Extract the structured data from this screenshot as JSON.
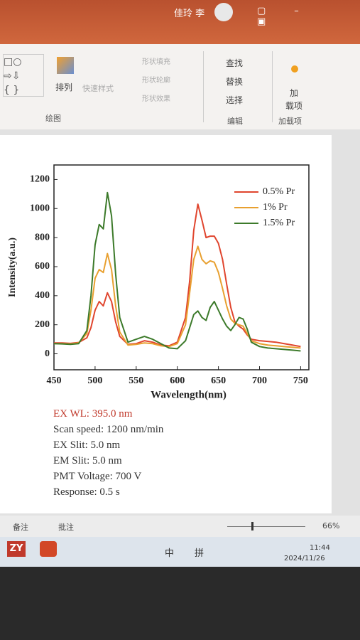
{
  "window": {
    "user": "佳玲 李"
  },
  "ribbon": {
    "arrange": "排列",
    "quick_styles": "快速样式",
    "shape_fill": "形状填充",
    "shape_outline": "形状轮廓",
    "shape_effects": "形状效果",
    "drawing_group": "绘图",
    "find": "查找",
    "replace": "替换",
    "select": "选择",
    "editing_group": "编辑",
    "addin_button": [
      "加",
      "载项"
    ],
    "addins_group": "加载项"
  },
  "chart_data": {
    "type": "line",
    "xlabel": "Wavelength(nm)",
    "ylabel": "Intensity(a.u.)",
    "x": [
      450,
      460,
      470,
      480,
      490,
      495,
      500,
      505,
      510,
      515,
      520,
      525,
      530,
      540,
      550,
      560,
      570,
      580,
      590,
      600,
      610,
      615,
      620,
      625,
      630,
      635,
      640,
      645,
      650,
      655,
      660,
      665,
      670,
      675,
      680,
      685,
      690,
      700,
      710,
      720,
      730,
      740,
      750
    ],
    "series": [
      {
        "name": "0.5% Pr",
        "color": "#e0452e",
        "values": [
          75,
          75,
          72,
          78,
          110,
          180,
          300,
          360,
          330,
          420,
          360,
          220,
          120,
          65,
          70,
          90,
          80,
          60,
          55,
          80,
          250,
          500,
          850,
          1030,
          920,
          800,
          810,
          810,
          760,
          650,
          480,
          320,
          220,
          190,
          170,
          130,
          100,
          90,
          85,
          80,
          70,
          60,
          50
        ]
      },
      {
        "name": "1% Pr",
        "color": "#e8a030",
        "values": [
          70,
          70,
          68,
          75,
          140,
          300,
          520,
          580,
          560,
          690,
          580,
          330,
          150,
          60,
          65,
          75,
          70,
          55,
          50,
          70,
          200,
          420,
          650,
          740,
          650,
          620,
          640,
          630,
          560,
          450,
          330,
          240,
          210,
          200,
          190,
          140,
          90,
          70,
          60,
          55,
          50,
          45,
          40
        ]
      },
      {
        "name": "1.5% Pr",
        "color": "#3c7a2a",
        "values": [
          70,
          68,
          65,
          70,
          160,
          400,
          750,
          890,
          860,
          1110,
          950,
          550,
          250,
          80,
          100,
          120,
          100,
          70,
          40,
          35,
          90,
          180,
          270,
          295,
          250,
          230,
          320,
          360,
          300,
          240,
          190,
          160,
          200,
          250,
          240,
          170,
          80,
          50,
          40,
          35,
          30,
          25,
          20
        ]
      }
    ],
    "xlim": [
      450,
      760
    ],
    "ylim": [
      -110,
      1300
    ],
    "xticks": [
      450,
      500,
      550,
      600,
      650,
      700,
      750
    ],
    "yticks": [
      0,
      200,
      400,
      600,
      800,
      1000,
      1200
    ],
    "legend": "upper right"
  },
  "notes": [
    "EX WL: 395.0 nm",
    "Scan speed: 1200 nm/min",
    "EX Slit: 5.0 nm",
    "EM Slit: 5.0 nm",
    "PMT Voltage: 700 V",
    "Response: 0.5 s"
  ],
  "status_bar": {
    "notes": "备注",
    "comments": "批注",
    "zoom": "66%"
  },
  "taskbar": {
    "app": "ZY",
    "ime": "中",
    "pinyin": "拼",
    "time": "11:44",
    "date": "2024/11/26"
  }
}
